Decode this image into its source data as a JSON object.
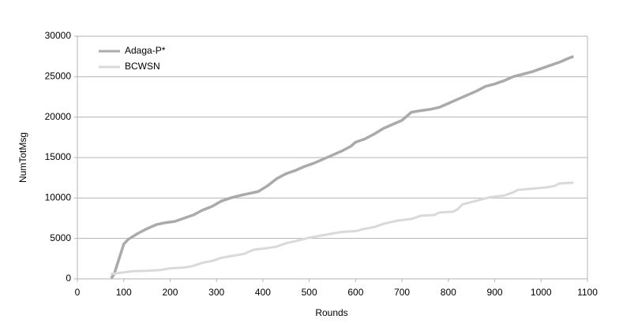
{
  "chart_data": {
    "type": "line",
    "x_label": "Rounds",
    "y_label": "NumTotMsg",
    "xlim": [
      0,
      1100
    ],
    "xticks": [
      0,
      100,
      200,
      300,
      400,
      500,
      600,
      700,
      800,
      900,
      1000,
      1100
    ],
    "ylim": [
      0,
      30000
    ],
    "yticks": [
      0,
      5000,
      10000,
      15000,
      20000,
      25000,
      30000
    ],
    "grid": true,
    "legend": "top-left",
    "series": [
      {
        "name": "Adaga-P*",
        "color": "#aaaaaa",
        "x": [
          72,
          75,
          80,
          90,
          100,
          110,
          130,
          150,
          170,
          190,
          210,
          230,
          250,
          270,
          290,
          310,
          330,
          350,
          370,
          390,
          410,
          430,
          450,
          470,
          490,
          510,
          530,
          550,
          570,
          590,
          600,
          620,
          640,
          660,
          680,
          700,
          720,
          740,
          760,
          780,
          800,
          820,
          840,
          860,
          880,
          900,
          920,
          940,
          960,
          980,
          1000,
          1020,
          1040,
          1060,
          1070
        ],
        "values": [
          300,
          200,
          700,
          2500,
          4300,
          4900,
          5600,
          6200,
          6700,
          6950,
          7100,
          7500,
          7900,
          8500,
          8950,
          9600,
          10000,
          10300,
          10550,
          10800,
          11500,
          12400,
          13000,
          13400,
          13900,
          14300,
          14800,
          15300,
          15800,
          16400,
          16900,
          17300,
          17900,
          18600,
          19100,
          19600,
          20600,
          20800,
          20950,
          21200,
          21700,
          22200,
          22700,
          23200,
          23800,
          24100,
          24500,
          25000,
          25300,
          25600,
          26000,
          26400,
          26800,
          27300,
          27500
        ]
      },
      {
        "name": "BCWSN",
        "color": "#d9d9d9",
        "x": [
          72,
          100,
          120,
          150,
          180,
          200,
          230,
          250,
          270,
          290,
          310,
          330,
          360,
          380,
          410,
          430,
          450,
          480,
          500,
          520,
          550,
          570,
          600,
          620,
          640,
          660,
          690,
          720,
          740,
          770,
          780,
          810,
          820,
          830,
          850,
          870,
          890,
          920,
          940,
          950,
          990,
          1010,
          1030,
          1040,
          1070
        ],
        "values": [
          600,
          800,
          950,
          1000,
          1100,
          1300,
          1400,
          1600,
          2000,
          2200,
          2600,
          2800,
          3100,
          3600,
          3800,
          4000,
          4400,
          4800,
          5100,
          5300,
          5600,
          5800,
          5900,
          6200,
          6400,
          6800,
          7200,
          7400,
          7800,
          7900,
          8200,
          8300,
          8600,
          9200,
          9500,
          9800,
          10100,
          10300,
          10700,
          11000,
          11200,
          11300,
          11500,
          11800,
          11900
        ]
      }
    ]
  }
}
